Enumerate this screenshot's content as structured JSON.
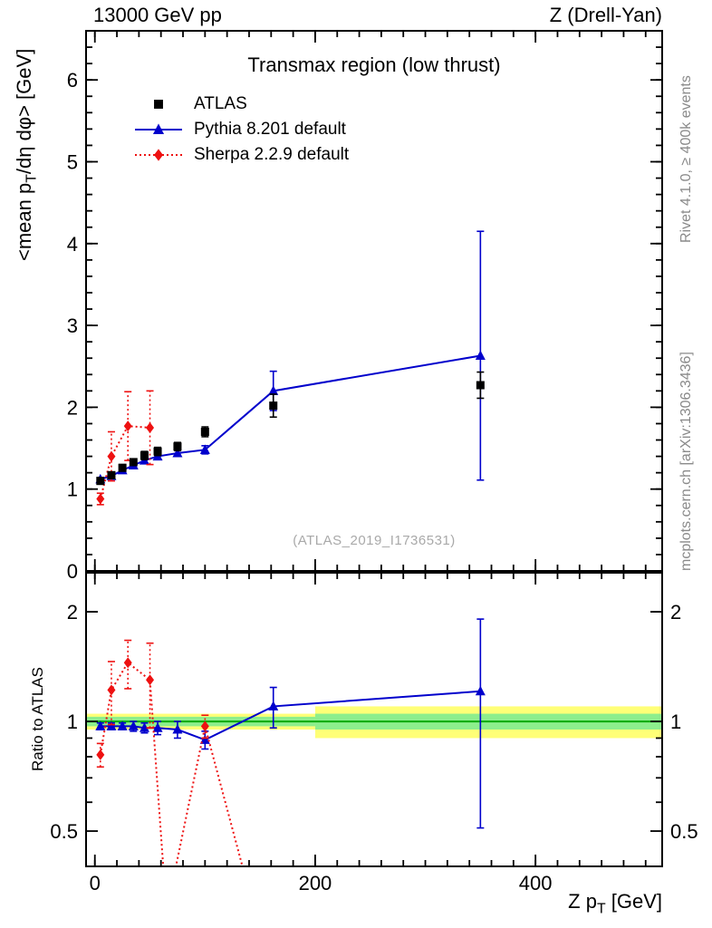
{
  "header": {
    "left": "13000 GeV pp",
    "right": "Z (Drell-Yan)"
  },
  "side_notes": {
    "top": "Rivet 4.1.0, ≥ 400k events",
    "bottom": "mcplots.cern.ch [arXiv:1306.3436]"
  },
  "watermark": "(ATLAS_2019_I1736531)",
  "chart_data": {
    "type": "line",
    "title": "Transmax region (low thrust)",
    "xlabel": "Z p_T [GeV]",
    "ylabel": "<mean p_T/dη dφ> [GeV]",
    "xlabel_parts": [
      "Z p",
      "T",
      " [GeV]"
    ],
    "ylabel_parts": [
      "<mean p",
      "T",
      "/dη dφ> [GeV]"
    ],
    "ratio_ylabel": "Ratio to ATLAS",
    "xlim": [
      -8,
      515
    ],
    "ylim": [
      0,
      6.6
    ],
    "ratio_ylim": [
      0.4,
      2.56
    ],
    "ratio_scale": "log",
    "grid": false,
    "legend_position": "top-left",
    "x_major_ticks": [
      0,
      200,
      400
    ],
    "x_minor_step": 20,
    "y_major_ticks": [
      0,
      1,
      2,
      3,
      4,
      5,
      6
    ],
    "y_minor_step": 0.2,
    "ratio_major_ticks": [
      0.5,
      1,
      2
    ],
    "ratio_minor_ticks": [
      0.6,
      0.7,
      0.8,
      0.9
    ],
    "colors": {
      "atlas": "#000000",
      "pythia": "#0000cc",
      "sherpa": "#ee1111",
      "band_yellow": "#ffff77",
      "band_green": "#8dee8d",
      "band_line": "#00aa00"
    },
    "bands": [
      {
        "x0": -8,
        "x1": 200,
        "yellow": [
          0.95,
          1.05
        ],
        "green": [
          0.97,
          1.03
        ]
      },
      {
        "x0": 200,
        "x1": 515,
        "yellow": [
          0.9,
          1.1
        ],
        "green": [
          0.95,
          1.05
        ]
      }
    ],
    "series": [
      {
        "name": "ATLAS",
        "marker": "square",
        "color_key": "atlas",
        "line": "none",
        "x": [
          5,
          15,
          25,
          35,
          45,
          57,
          75,
          100,
          162,
          350
        ],
        "y": [
          1.1,
          1.17,
          1.26,
          1.33,
          1.41,
          1.46,
          1.52,
          1.7,
          2.02,
          2.27
        ],
        "yerr": [
          0.04,
          0.04,
          0.04,
          0.04,
          0.05,
          0.05,
          0.05,
          0.06,
          0.14,
          0.16
        ]
      },
      {
        "name": "Pythia 8.201 default",
        "marker": "triangle",
        "color_key": "pythia",
        "line": "solid",
        "x": [
          5,
          15,
          25,
          35,
          45,
          57,
          75,
          100,
          162,
          350
        ],
        "y": [
          1.12,
          1.16,
          1.23,
          1.29,
          1.35,
          1.4,
          1.44,
          1.48,
          2.2,
          2.63
        ],
        "yerr": [
          0.02,
          0.02,
          0.02,
          0.02,
          0.03,
          0.03,
          0.04,
          0.05,
          0.24,
          1.52
        ],
        "ratio": [
          0.97,
          0.97,
          0.97,
          0.97,
          0.96,
          0.96,
          0.95,
          0.89,
          1.1,
          1.21
        ],
        "ratio_err": [
          0.02,
          0.02,
          0.02,
          0.03,
          0.03,
          0.04,
          0.05,
          0.05,
          0.14,
          0.7
        ]
      },
      {
        "name": "Sherpa 2.2.9 default",
        "marker": "diamond",
        "color_key": "sherpa",
        "line": "dotted",
        "x": [
          5,
          15,
          30,
          50
        ],
        "y": [
          0.88,
          1.4,
          1.77,
          1.75
        ],
        "yerr": [
          0.07,
          0.3,
          0.42,
          0.45
        ],
        "ratio_x": [
          5,
          15,
          30,
          50,
          65,
          100,
          145
        ],
        "ratio": [
          0.81,
          1.22,
          1.45,
          1.3,
          0.3,
          0.97,
          0.3
        ],
        "ratio_err": [
          0.06,
          0.24,
          0.22,
          0.34,
          0,
          0.07,
          0
        ],
        "ratio_offscale": [
          false,
          false,
          false,
          false,
          true,
          false,
          true
        ]
      }
    ]
  }
}
